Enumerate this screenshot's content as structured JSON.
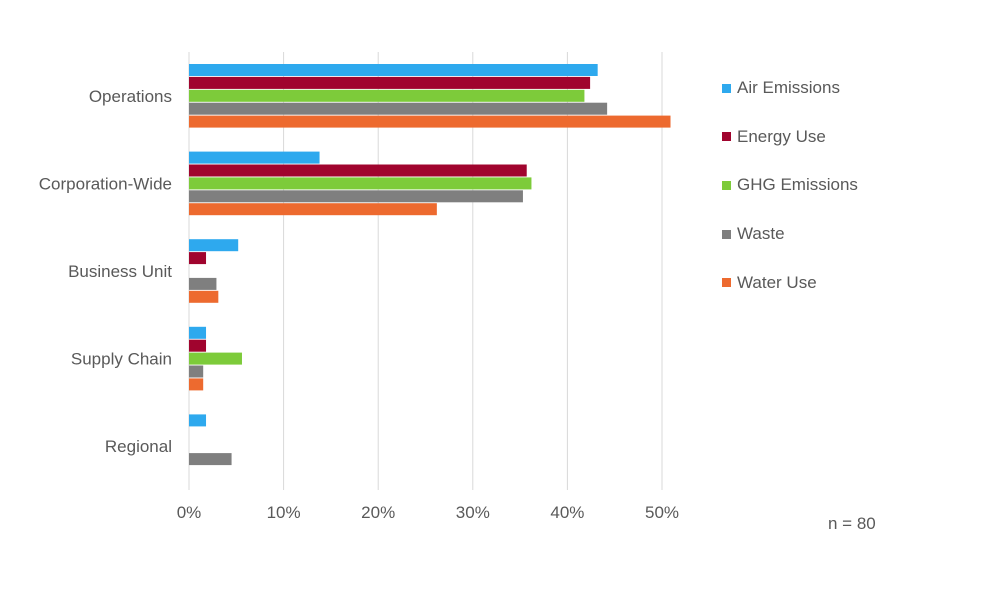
{
  "chart_data": {
    "type": "bar",
    "orientation": "horizontal",
    "title": "",
    "xlabel": "",
    "ylabel": "",
    "xlim": [
      0,
      0.5
    ],
    "x_ticks": [
      0,
      0.1,
      0.2,
      0.3,
      0.4,
      0.5
    ],
    "x_tick_labels": [
      "0%",
      "10%",
      "20%",
      "30%",
      "40%",
      "50%"
    ],
    "grid": "vertical",
    "categories": [
      "Operations",
      "Corporation-Wide",
      "Business Unit",
      "Supply Chain",
      "Regional"
    ],
    "series": [
      {
        "name": "Air Emissions",
        "color": "#2EA9EE",
        "values": [
          0.432,
          0.138,
          0.052,
          0.018,
          0.018
        ]
      },
      {
        "name": "Energy Use",
        "color": "#A0042E",
        "values": [
          0.424,
          0.357,
          0.018,
          0.018,
          0
        ]
      },
      {
        "name": "GHG Emissions",
        "color": "#7DCB3A",
        "values": [
          0.418,
          0.362,
          0,
          0.056,
          0
        ]
      },
      {
        "name": "Waste",
        "color": "#7F7F7F",
        "values": [
          0.442,
          0.353,
          0.029,
          0.015,
          0.045
        ]
      },
      {
        "name": "Water Use",
        "color": "#ED6A2F",
        "values": [
          0.509,
          0.262,
          0.031,
          0.015,
          0
        ]
      }
    ],
    "legend_position": "right",
    "annotation": "n = 80"
  }
}
